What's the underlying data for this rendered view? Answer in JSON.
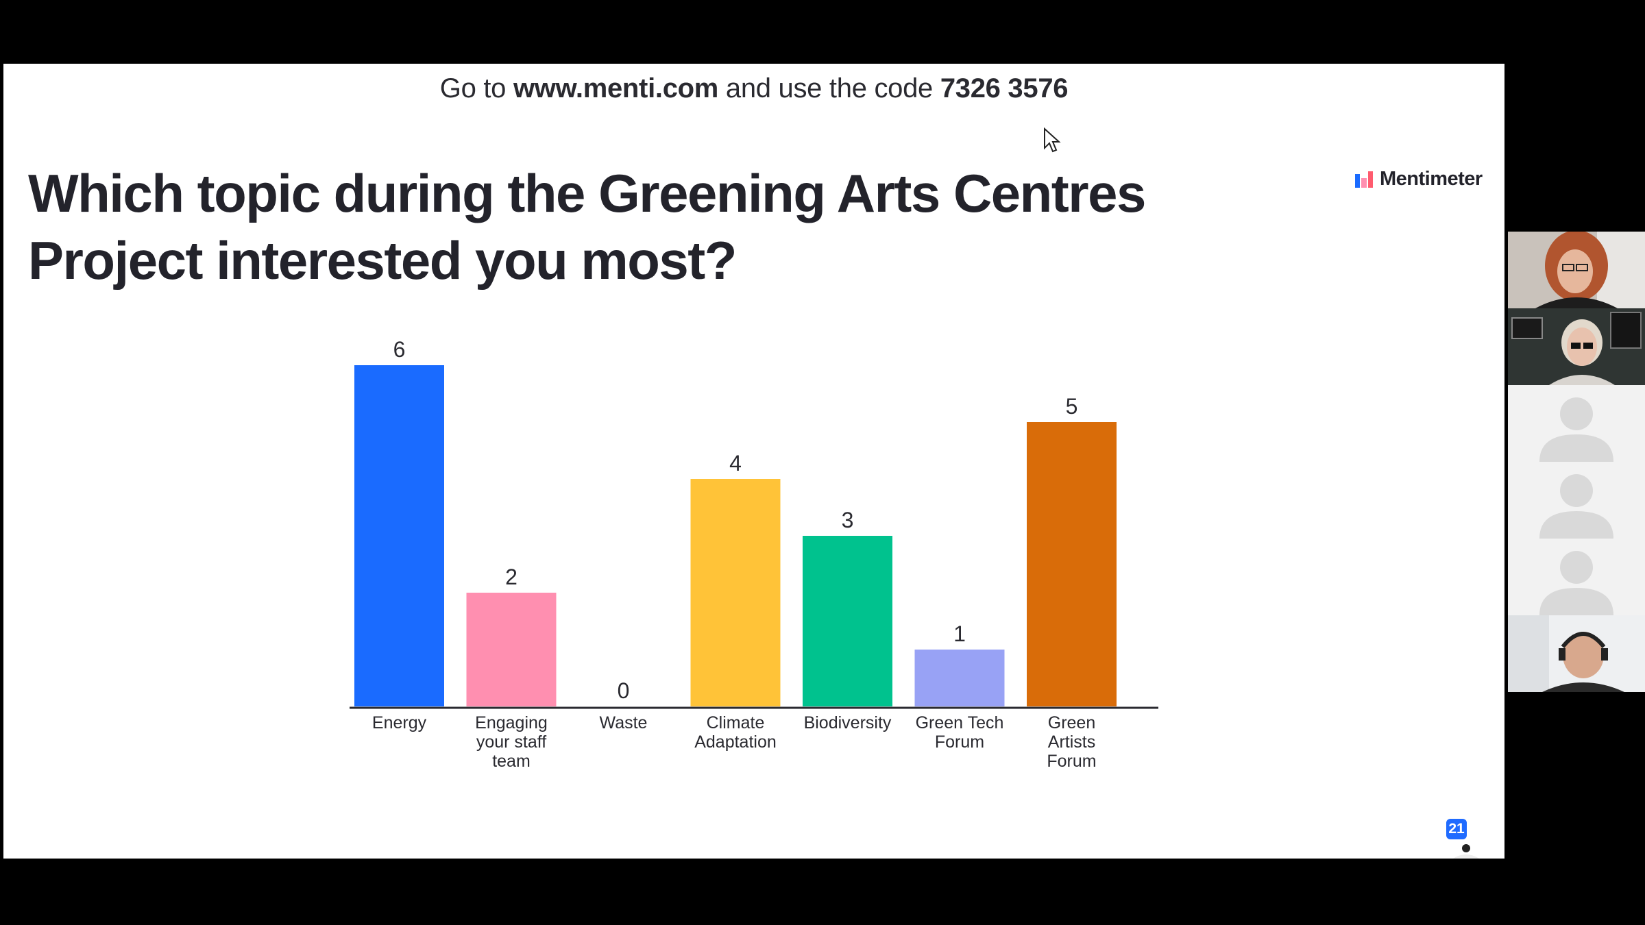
{
  "slide": {
    "join_prefix": "Go to",
    "join_url": "www.menti.com",
    "join_middle": "and use the code",
    "join_code": "7326 3576",
    "question": "Which topic during the Greening Arts Centres Project interested you most?",
    "brand": "Mentimeter",
    "response_count": "21"
  },
  "chart_data": {
    "type": "bar",
    "categories": [
      "Energy",
      "Engaging your staff team",
      "Waste",
      "Climate Adaptation",
      "Biodiversity",
      "Green Tech Forum",
      "Green Artists Forum"
    ],
    "category_lines": [
      [
        "Energy"
      ],
      [
        "Engaging",
        "your staff",
        "team"
      ],
      [
        "Waste"
      ],
      [
        "Climate",
        "Adaptation"
      ],
      [
        "Biodiversity"
      ],
      [
        "Green Tech",
        "Forum"
      ],
      [
        "Green",
        "Artists",
        "Forum"
      ]
    ],
    "values": [
      6,
      2,
      0,
      4,
      3,
      1,
      5
    ],
    "colors": [
      "#1a6bff",
      "#ff8fb0",
      "#cccccc",
      "#ffc338",
      "#00c28e",
      "#98a2f5",
      "#d96c09"
    ],
    "title": "",
    "xlabel": "",
    "ylabel": "",
    "ylim": [
      0,
      6
    ],
    "grid": false,
    "legend": "none"
  },
  "participants": [
    {
      "type": "video",
      "icon": "participant-video-1"
    },
    {
      "type": "video",
      "icon": "participant-video-2"
    },
    {
      "type": "avatar",
      "icon": "person-placeholder-icon"
    },
    {
      "type": "avatar",
      "icon": "person-placeholder-icon"
    },
    {
      "type": "avatar",
      "icon": "person-placeholder-icon"
    },
    {
      "type": "video",
      "icon": "participant-video-3"
    }
  ]
}
